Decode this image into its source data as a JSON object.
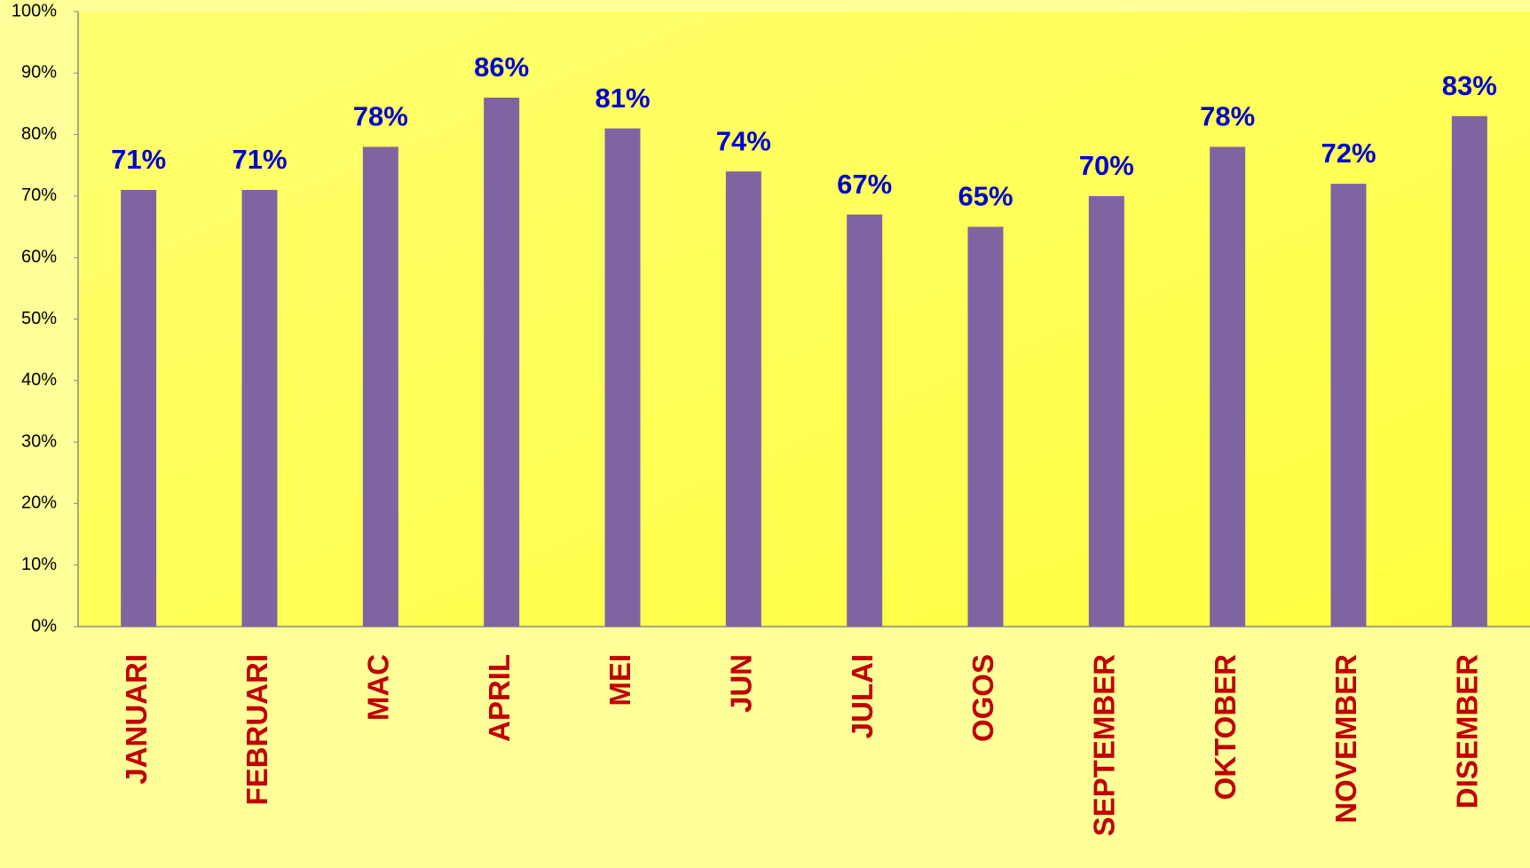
{
  "chart_data": {
    "type": "bar",
    "categories": [
      "JANUARI",
      "FEBRUARI",
      "MAC",
      "APRIL",
      "MEI",
      "JUN",
      "JULAI",
      "OGOS",
      "SEPTEMBER",
      "OKTOBER",
      "NOVEMBER",
      "DISEMBER"
    ],
    "values": [
      71,
      71,
      78,
      86,
      81,
      74,
      67,
      65,
      70,
      78,
      72,
      83
    ],
    "value_labels": [
      "71%",
      "71%",
      "78%",
      "86%",
      "81%",
      "74%",
      "67%",
      "65%",
      "70%",
      "78%",
      "72%",
      "83%"
    ],
    "color": "#8064a2",
    "ylim": [
      0,
      100
    ],
    "yticks": [
      {
        "value": 0,
        "label": "0%"
      },
      {
        "value": 10,
        "label": "10%"
      },
      {
        "value": 20,
        "label": "20%"
      },
      {
        "value": 30,
        "label": "30%"
      },
      {
        "value": 40,
        "label": "40%"
      },
      {
        "value": 50,
        "label": "50%"
      },
      {
        "value": 60,
        "label": "60%"
      },
      {
        "value": 70,
        "label": "70%"
      },
      {
        "value": 80,
        "label": "80%"
      },
      {
        "value": 90,
        "label": "90%"
      },
      {
        "value": 100,
        "label": "100%"
      }
    ],
    "grid": false
  }
}
